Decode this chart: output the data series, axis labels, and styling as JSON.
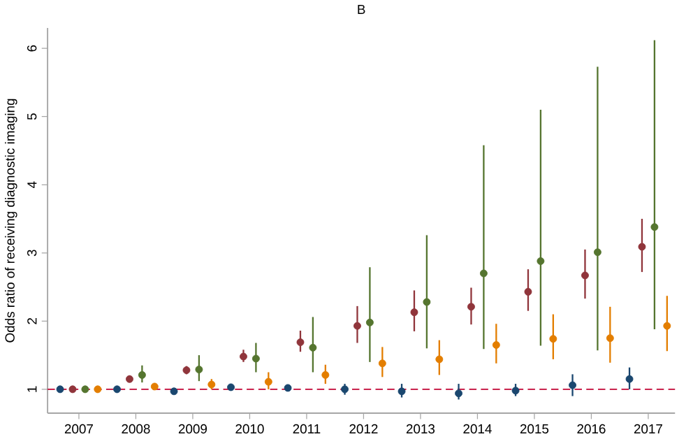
{
  "chart_data": {
    "type": "scatter",
    "title": "B",
    "ylabel": "Odds ratio of receiving diagnostic imaging",
    "categories": [
      "2007",
      "2008",
      "2009",
      "2010",
      "2011",
      "2012",
      "2013",
      "2014",
      "2015",
      "2016",
      "2017"
    ],
    "series": [
      {
        "color": "#1a476f",
        "values": [
          1.0,
          1.0,
          0.97,
          1.03,
          1.02,
          1.0,
          0.97,
          0.94,
          0.98,
          1.06,
          1.15
        ],
        "errors": [
          null,
          null,
          null,
          null,
          null,
          [
            0.92,
            1.08
          ],
          [
            0.88,
            1.08
          ],
          [
            0.85,
            1.08
          ],
          [
            0.9,
            1.08
          ],
          [
            0.9,
            1.22
          ],
          [
            1.0,
            1.32
          ]
        ]
      },
      {
        "color": "#90353b",
        "values": [
          1.0,
          1.15,
          1.28,
          1.48,
          1.69,
          1.93,
          2.13,
          2.21,
          2.43,
          2.67,
          3.09
        ],
        "errors": [
          null,
          [
            1.1,
            1.2
          ],
          [
            1.22,
            1.34
          ],
          [
            1.4,
            1.58
          ],
          [
            1.55,
            1.86
          ],
          [
            1.68,
            2.22
          ],
          [
            1.85,
            2.45
          ],
          [
            1.95,
            2.49
          ],
          [
            2.15,
            2.76
          ],
          [
            2.33,
            3.05
          ],
          [
            2.72,
            3.5
          ]
        ]
      },
      {
        "color": "#55752f",
        "values": [
          1.0,
          1.21,
          1.29,
          1.45,
          1.61,
          1.98,
          2.28,
          2.7,
          2.88,
          3.01,
          3.38
        ],
        "errors": [
          null,
          [
            1.1,
            1.35
          ],
          [
            1.12,
            1.5
          ],
          [
            1.25,
            1.68
          ],
          [
            1.25,
            2.06
          ],
          [
            1.4,
            2.79
          ],
          [
            1.6,
            3.26
          ],
          [
            1.59,
            4.58
          ],
          [
            1.64,
            5.1
          ],
          [
            1.57,
            5.73
          ],
          [
            1.88,
            6.12
          ]
        ]
      },
      {
        "color": "#e37e00",
        "values": [
          1.0,
          1.04,
          1.07,
          1.11,
          1.21,
          1.38,
          1.44,
          1.65,
          1.74,
          1.75,
          1.93
        ],
        "errors": [
          null,
          [
            1.0,
            1.08
          ],
          [
            1.0,
            1.15
          ],
          [
            1.0,
            1.25
          ],
          [
            1.08,
            1.36
          ],
          [
            1.18,
            1.62
          ],
          [
            1.21,
            1.72
          ],
          [
            1.38,
            1.96
          ],
          [
            1.44,
            2.1
          ],
          [
            1.39,
            2.21
          ],
          [
            1.56,
            2.37
          ]
        ]
      }
    ],
    "ylim": [
      0.65,
      6.3
    ],
    "yticks": [
      1,
      2,
      3,
      4,
      5,
      6
    ],
    "grid": false,
    "ref_lines": [
      {
        "axis": "y",
        "value": 1,
        "color": "#c10534",
        "line_style": "dashed"
      }
    ]
  }
}
